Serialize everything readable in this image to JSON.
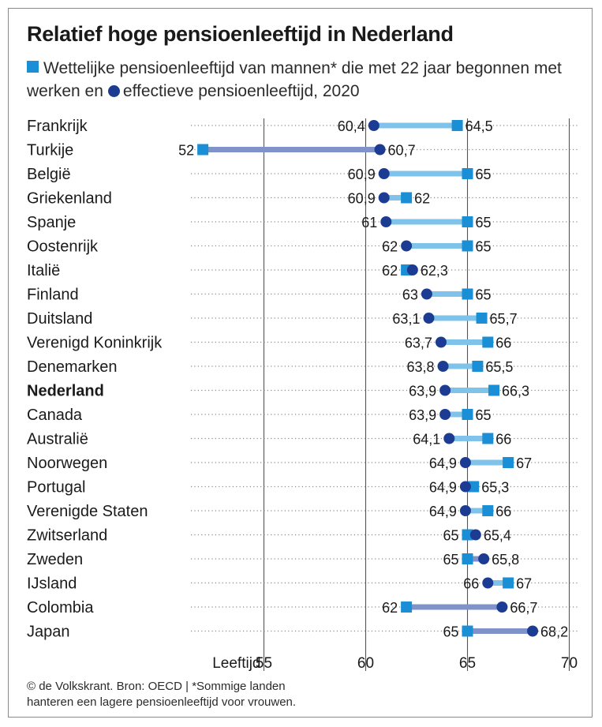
{
  "title": "Relatief hoge pensioenleeftijd in Nederland",
  "subtitle": {
    "part1": "Wettelijke pensioenleeftijd van mannen* die met 22 jaar begonnen met werken en",
    "part2": "effectieve pensioenleeftijd, 2020"
  },
  "footer": {
    "line1": "© de Volkskrant. Bron: OECD | *Sommige landen",
    "line2": "hanteren een lagere pensioenleeftijd voor vrouwen."
  },
  "colors": {
    "statutory_marker": "#1a8fd6",
    "effective_marker": "#1c3c93",
    "bar_effective_lower": "#7fc3ea",
    "bar_statutory_lower": "#7f92c9"
  },
  "chart_data": {
    "type": "dot-range",
    "xlabel": "Leeftijd",
    "xlim": [
      50,
      73
    ],
    "x_ticks": [
      55,
      60,
      65,
      70
    ],
    "series": [
      {
        "name": "Wettelijke pensioenleeftijd",
        "marker": "square"
      },
      {
        "name": "Effectieve pensioenleeftijd",
        "marker": "circle"
      }
    ],
    "rows": [
      {
        "country": "Frankrijk",
        "statutory": 64.5,
        "effective": 60.4,
        "statutory_label": "64,5",
        "effective_label": "60,4",
        "highlight": false
      },
      {
        "country": "Turkije",
        "statutory": 52,
        "effective": 60.7,
        "statutory_label": "52",
        "effective_label": "60,7",
        "highlight": false
      },
      {
        "country": "België",
        "statutory": 65,
        "effective": 60.9,
        "statutory_label": "65",
        "effective_label": "60,9",
        "highlight": false
      },
      {
        "country": "Griekenland",
        "statutory": 62,
        "effective": 60.9,
        "statutory_label": "62",
        "effective_label": "60,9",
        "highlight": false
      },
      {
        "country": "Spanje",
        "statutory": 65,
        "effective": 61,
        "statutory_label": "65",
        "effective_label": "61",
        "highlight": false
      },
      {
        "country": "Oostenrijk",
        "statutory": 65,
        "effective": 62,
        "statutory_label": "65",
        "effective_label": "62",
        "highlight": false
      },
      {
        "country": "Italië",
        "statutory": 62,
        "effective": 62.3,
        "statutory_label": "62",
        "effective_label": "62,3",
        "highlight": false
      },
      {
        "country": "Finland",
        "statutory": 65,
        "effective": 63,
        "statutory_label": "65",
        "effective_label": "63",
        "highlight": false
      },
      {
        "country": "Duitsland",
        "statutory": 65.7,
        "effective": 63.1,
        "statutory_label": "65,7",
        "effective_label": "63,1",
        "highlight": false
      },
      {
        "country": "Verenigd Koninkrijk",
        "statutory": 66,
        "effective": 63.7,
        "statutory_label": "66",
        "effective_label": "63,7",
        "highlight": false
      },
      {
        "country": "Denemarken",
        "statutory": 65.5,
        "effective": 63.8,
        "statutory_label": "65,5",
        "effective_label": "63,8",
        "highlight": false
      },
      {
        "country": "Nederland",
        "statutory": 66.3,
        "effective": 63.9,
        "statutory_label": "66,3",
        "effective_label": "63,9",
        "highlight": true
      },
      {
        "country": "Canada",
        "statutory": 65,
        "effective": 63.9,
        "statutory_label": "65",
        "effective_label": "63,9",
        "highlight": false
      },
      {
        "country": "Australië",
        "statutory": 66,
        "effective": 64.1,
        "statutory_label": "66",
        "effective_label": "64,1",
        "highlight": false
      },
      {
        "country": "Noorwegen",
        "statutory": 67,
        "effective": 64.9,
        "statutory_label": "67",
        "effective_label": "64,9",
        "highlight": false
      },
      {
        "country": "Portugal",
        "statutory": 65.3,
        "effective": 64.9,
        "statutory_label": "65,3",
        "effective_label": "64,9",
        "highlight": false
      },
      {
        "country": "Verenigde Staten",
        "statutory": 66,
        "effective": 64.9,
        "statutory_label": "66",
        "effective_label": "64,9",
        "highlight": false
      },
      {
        "country": "Zwitserland",
        "statutory": 65,
        "effective": 65.4,
        "statutory_label": "65",
        "effective_label": "65,4",
        "highlight": false
      },
      {
        "country": "Zweden",
        "statutory": 65,
        "effective": 65.8,
        "statutory_label": "65",
        "effective_label": "65,8",
        "highlight": false
      },
      {
        "country": "IJsland",
        "statutory": 67,
        "effective": 66,
        "statutory_label": "67",
        "effective_label": "66",
        "highlight": false
      },
      {
        "country": "Colombia",
        "statutory": 62,
        "effective": 66.7,
        "statutory_label": "62",
        "effective_label": "66,7",
        "highlight": false
      },
      {
        "country": "Japan",
        "statutory": 65,
        "effective": 68.2,
        "statutory_label": "65",
        "effective_label": "68,2",
        "highlight": false
      }
    ]
  }
}
